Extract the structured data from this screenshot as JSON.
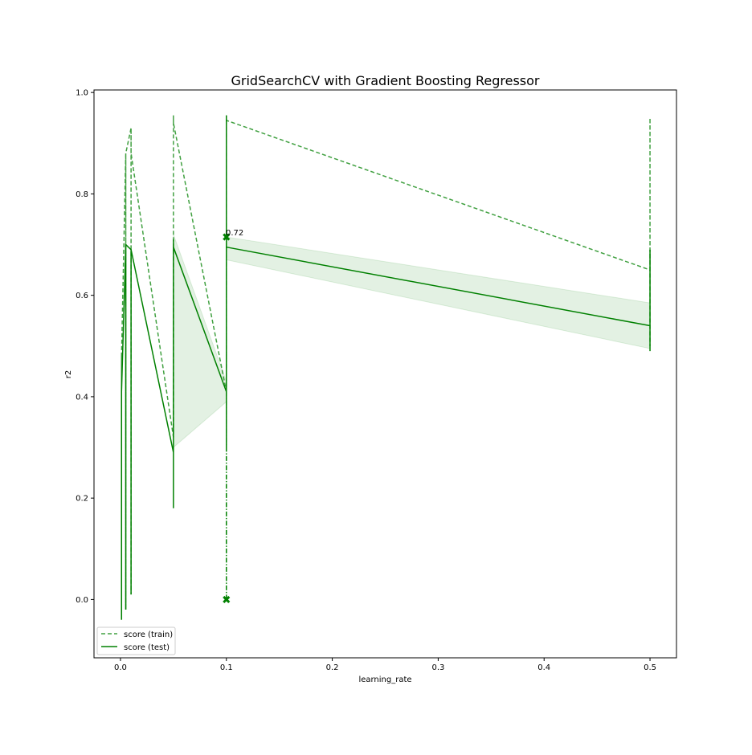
{
  "chart_data": {
    "type": "line",
    "title": "GridSearchCV with Gradient Boosting Regressor",
    "xlabel": "learning_rate",
    "ylabel": "r2",
    "xlim": [
      -0.025,
      0.525
    ],
    "ylim": [
      -0.115,
      1.005
    ],
    "xticks": [
      0.0,
      0.1,
      0.2,
      0.3,
      0.4,
      0.5
    ],
    "xtick_labels": [
      "0.0",
      "0.1",
      "0.2",
      "0.3",
      "0.4",
      "0.5"
    ],
    "yticks": [
      0.0,
      0.2,
      0.4,
      0.6,
      0.8,
      1.0
    ],
    "ytick_labels": [
      "0.0",
      "0.2",
      "0.4",
      "0.6",
      "0.8",
      "1.0"
    ],
    "grid": false,
    "legend_position": "lower-left",
    "color": "#008000",
    "band_color": "#008000",
    "series": [
      {
        "name": "score (train)",
        "style": "dashed",
        "points": [
          [
            0.001,
            0.48
          ],
          [
            0.001,
            -0.04
          ],
          [
            0.001,
            0.48
          ],
          [
            0.005,
            0.88
          ],
          [
            0.005,
            -0.02
          ],
          [
            0.005,
            0.88
          ],
          [
            0.01,
            0.93
          ],
          [
            0.01,
            0.01
          ],
          [
            0.01,
            0.93
          ],
          [
            0.01,
            0.88
          ],
          [
            0.05,
            0.32
          ],
          [
            0.05,
            0.955
          ],
          [
            0.05,
            0.94
          ],
          [
            0.1,
            0.41
          ],
          [
            0.1,
            0.955
          ],
          [
            0.1,
            0.945
          ],
          [
            0.5,
            0.65
          ],
          [
            0.5,
            0.95
          ],
          [
            0.5,
            0.5
          ]
        ]
      },
      {
        "name": "score (test)",
        "style": "solid",
        "points": [
          [
            0.001,
            0.4
          ],
          [
            0.001,
            -0.04
          ],
          [
            0.001,
            0.41
          ],
          [
            0.005,
            0.7
          ],
          [
            0.005,
            -0.02
          ],
          [
            0.005,
            0.7
          ],
          [
            0.01,
            0.69
          ],
          [
            0.01,
            0.01
          ],
          [
            0.01,
            0.69
          ],
          [
            0.05,
            0.29
          ],
          [
            0.05,
            0.18
          ],
          [
            0.05,
            0.71
          ],
          [
            0.05,
            0.695
          ],
          [
            0.1,
            0.41
          ],
          [
            0.1,
            0.3
          ],
          [
            0.1,
            0.955
          ],
          [
            0.1,
            0.695
          ],
          [
            0.5,
            0.54
          ],
          [
            0.5,
            0.49
          ],
          [
            0.5,
            0.69
          ],
          [
            0.5,
            0.54
          ]
        ]
      }
    ],
    "bands": [
      {
        "x": [
          0.05,
          0.1
        ],
        "lower": [
          0.3,
          0.39
        ],
        "upper": [
          0.72,
          0.43
        ]
      },
      {
        "x": [
          0.1,
          0.5
        ],
        "lower": [
          0.67,
          0.495
        ],
        "upper": [
          0.715,
          0.585
        ]
      }
    ],
    "markers": [
      {
        "x": 0.1,
        "y": 0.715,
        "shape": "x"
      },
      {
        "x": 0.1,
        "y": 0.0,
        "shape": "x"
      }
    ],
    "best_vline": {
      "x": 0.1,
      "from": 0.0,
      "to": 0.715,
      "style": "dashdot"
    },
    "annotation": {
      "text": "0.72",
      "x": 0.1,
      "y": 0.715
    }
  }
}
